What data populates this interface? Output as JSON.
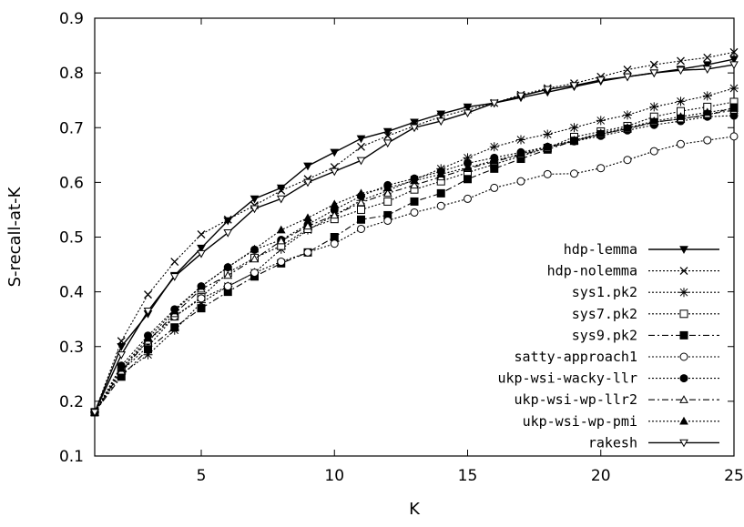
{
  "chart_data": {
    "type": "line",
    "xlabel": "K",
    "ylabel": "S-recall-at-K",
    "xlim": [
      1,
      25
    ],
    "ylim": [
      0.1,
      0.9
    ],
    "x_ticks": [
      "5",
      "10",
      "15",
      "20",
      "25"
    ],
    "x_tick_values": [
      5,
      10,
      15,
      20,
      25
    ],
    "y_ticks": [
      "0.1",
      "0.2",
      "0.3",
      "0.4",
      "0.5",
      "0.6",
      "0.7",
      "0.8",
      "0.9"
    ],
    "y_tick_values": [
      0.1,
      0.2,
      0.3,
      0.4,
      0.5,
      0.6,
      0.7,
      0.8,
      0.9
    ],
    "grid": false,
    "legend_position": "bottom-right",
    "x": [
      1,
      2,
      3,
      4,
      5,
      6,
      7,
      8,
      9,
      10,
      11,
      12,
      13,
      14,
      15,
      16,
      17,
      18,
      19,
      20,
      21,
      22,
      23,
      24,
      25
    ],
    "series": [
      {
        "name": "hdp-lemma",
        "marker": "triangle-down-filled",
        "dash": "solid",
        "values": [
          0.18,
          0.3,
          0.36,
          0.43,
          0.48,
          0.53,
          0.57,
          0.59,
          0.63,
          0.655,
          0.68,
          0.693,
          0.71,
          0.725,
          0.738,
          0.745,
          0.755,
          0.765,
          0.775,
          0.785,
          0.793,
          0.8,
          0.807,
          0.815,
          0.825
        ]
      },
      {
        "name": "hdp-nolemma",
        "marker": "x",
        "dash": "dotted",
        "values": [
          0.18,
          0.31,
          0.395,
          0.455,
          0.505,
          0.532,
          0.558,
          0.585,
          0.606,
          0.628,
          0.665,
          0.685,
          0.703,
          0.72,
          0.733,
          0.745,
          0.76,
          0.772,
          0.781,
          0.793,
          0.806,
          0.815,
          0.822,
          0.828,
          0.838
        ]
      },
      {
        "name": "sys1.pk2",
        "marker": "star",
        "dash": "dotted",
        "values": [
          0.18,
          0.25,
          0.285,
          0.33,
          0.38,
          0.41,
          0.435,
          0.478,
          0.513,
          0.54,
          0.567,
          0.585,
          0.605,
          0.625,
          0.645,
          0.665,
          0.678,
          0.688,
          0.7,
          0.713,
          0.723,
          0.738,
          0.748,
          0.758,
          0.772
        ]
      },
      {
        "name": "sys7.pk2",
        "marker": "square-open",
        "dash": "dotted",
        "values": [
          0.18,
          0.255,
          0.3,
          0.355,
          0.39,
          0.435,
          0.462,
          0.484,
          0.515,
          0.533,
          0.55,
          0.565,
          0.587,
          0.602,
          0.618,
          0.633,
          0.648,
          0.663,
          0.683,
          0.693,
          0.703,
          0.72,
          0.73,
          0.738,
          0.747
        ]
      },
      {
        "name": "sys9.pk2",
        "marker": "square-filled",
        "dash": "dashdot",
        "values": [
          0.18,
          0.245,
          0.295,
          0.335,
          0.37,
          0.4,
          0.428,
          0.452,
          0.472,
          0.5,
          0.532,
          0.54,
          0.565,
          0.58,
          0.606,
          0.625,
          0.643,
          0.66,
          0.676,
          0.688,
          0.698,
          0.71,
          0.716,
          0.723,
          0.737
        ]
      },
      {
        "name": "satty-approach1",
        "marker": "circle-open",
        "dash": "dotted",
        "values": [
          0.18,
          0.26,
          0.31,
          0.355,
          0.388,
          0.41,
          0.435,
          0.455,
          0.472,
          0.488,
          0.515,
          0.53,
          0.545,
          0.557,
          0.57,
          0.59,
          0.602,
          0.615,
          0.616,
          0.626,
          0.641,
          0.657,
          0.67,
          0.677,
          0.684
        ]
      },
      {
        "name": "ukp-wsi-wacky-llr",
        "marker": "circle-filled",
        "dash": "dotted",
        "values": [
          0.18,
          0.265,
          0.32,
          0.368,
          0.41,
          0.445,
          0.477,
          0.495,
          0.523,
          0.55,
          0.575,
          0.595,
          0.607,
          0.62,
          0.635,
          0.645,
          0.655,
          0.665,
          0.675,
          0.685,
          0.695,
          0.705,
          0.712,
          0.72,
          0.722
        ]
      },
      {
        "name": "ukp-wsi-wp-llr2",
        "marker": "triangle-up-open",
        "dash": "dashdot",
        "values": [
          0.18,
          0.255,
          0.31,
          0.36,
          0.405,
          0.43,
          0.46,
          0.493,
          0.52,
          0.54,
          0.563,
          0.58,
          0.595,
          0.61,
          0.625,
          0.638,
          0.65,
          0.663,
          0.676,
          0.688,
          0.698,
          0.71,
          0.716,
          0.724,
          0.732
        ]
      },
      {
        "name": "ukp-wsi-wp-pmi",
        "marker": "triangle-up-filled",
        "dash": "dotted",
        "values": [
          0.18,
          0.26,
          0.315,
          0.365,
          0.41,
          0.445,
          0.478,
          0.513,
          0.535,
          0.56,
          0.58,
          0.59,
          0.603,
          0.615,
          0.627,
          0.64,
          0.652,
          0.665,
          0.677,
          0.69,
          0.7,
          0.712,
          0.72,
          0.728,
          0.735
        ]
      },
      {
        "name": "rakesh",
        "marker": "triangle-down-open",
        "dash": "solid",
        "values": [
          0.18,
          0.285,
          0.365,
          0.428,
          0.47,
          0.508,
          0.552,
          0.57,
          0.6,
          0.62,
          0.64,
          0.672,
          0.7,
          0.712,
          0.727,
          0.745,
          0.758,
          0.77,
          0.777,
          0.787,
          0.793,
          0.8,
          0.805,
          0.807,
          0.815
        ]
      }
    ]
  }
}
